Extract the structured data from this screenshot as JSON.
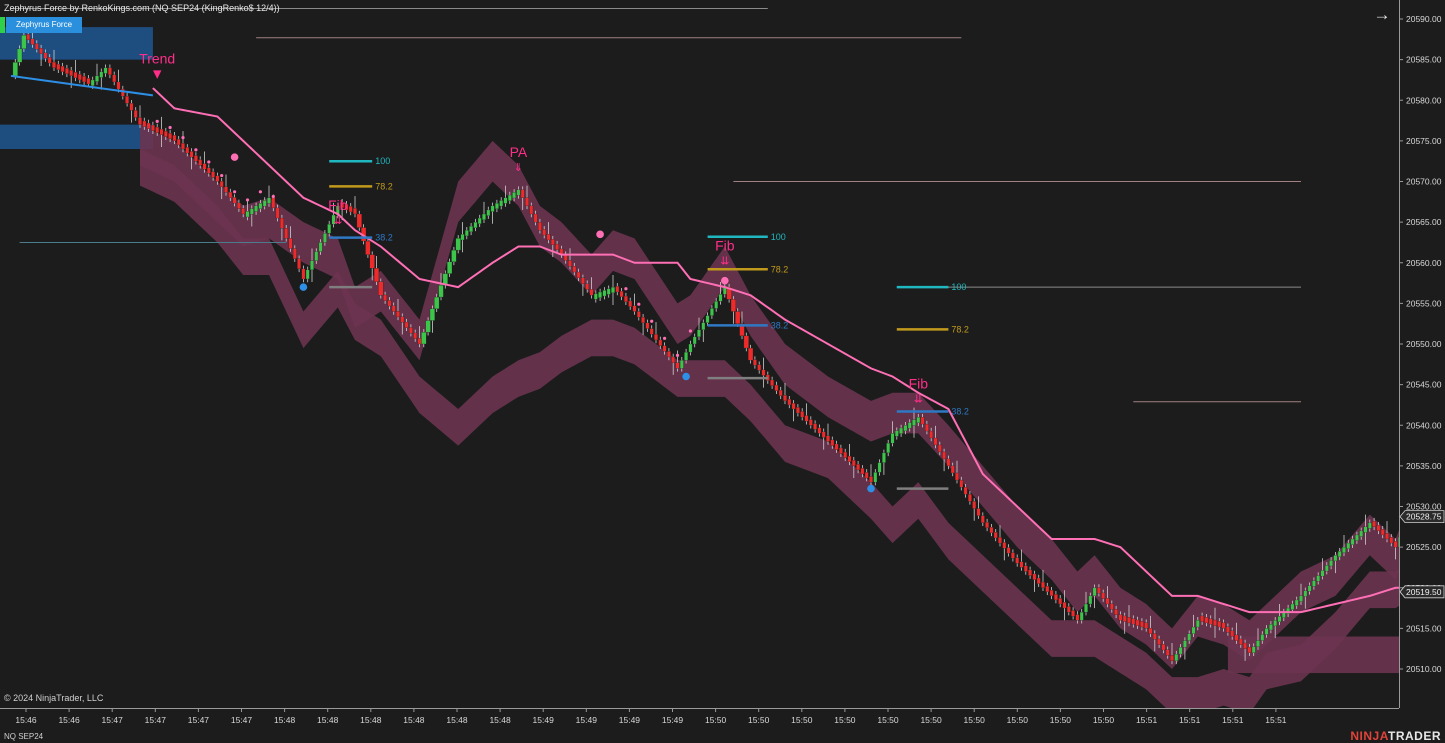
{
  "window": {
    "title": "Zephyrus Force by RenkoKings.com (NQ SEP24 (KingRenko$ 12/4))",
    "indicator_badge": "Zephyrus Force",
    "copyright": "© 2024 NinjaTrader, LLC",
    "instrument_tab": "NQ SEP24",
    "brand_left": "NINJA",
    "brand_right": "TRADER",
    "nav_arrow": "→",
    "nav_icon": "arrow-right-icon"
  },
  "colors": {
    "background": "#1c1c1c",
    "bull_candle": "#3cc54a",
    "bear_candle": "#ee2a2a",
    "mid_line": "#ff6fb5",
    "band_fill": "#6b3450",
    "blue_band": "#1e4d80",
    "blue_line": "#2d8fe6",
    "fib_100": "#1fb8c0",
    "fib_78": "#c29a1b",
    "fib_38": "#2e78c4",
    "signal_text": "#ff2e8a"
  },
  "chart_data": {
    "type": "candlestick",
    "instrument": "NQ SEP24",
    "bar_type": "KingRenko$ 12/4",
    "y_axis": {
      "min": 20507,
      "max": 20592,
      "ticks": [
        20590,
        20585,
        20580,
        20575,
        20570,
        20565,
        20560,
        20555,
        20550,
        20545,
        20540,
        20535,
        20530,
        20525,
        20520,
        20515,
        20510
      ],
      "tick_labels": [
        "20590.00",
        "20585.00",
        "20580.00",
        "20575.00",
        "20570.00",
        "20565.00",
        "20560.00",
        "20555.00",
        "20550.00",
        "20545.00",
        "20540.00",
        "20535.00",
        "20530.00",
        "20525.00",
        "20520.00",
        "20515.00",
        "20510.00"
      ]
    },
    "x_axis": {
      "tick_labels": [
        "15:46",
        "15:46",
        "15:47",
        "15:47",
        "15:47",
        "15:47",
        "15:48",
        "15:48",
        "15:48",
        "15:48",
        "15:48",
        "15:48",
        "15:49",
        "15:49",
        "15:49",
        "15:49",
        "15:50",
        "15:50",
        "15:50",
        "15:50",
        "15:50",
        "15:50",
        "15:50",
        "15:50",
        "15:50",
        "15:50",
        "15:51",
        "15:51",
        "15:51",
        "15:51"
      ]
    },
    "price_labels": [
      {
        "value": 20528.75,
        "label": "20528.75"
      },
      {
        "value": 20519.5,
        "label": "20519.50"
      }
    ],
    "signals": [
      {
        "text": "Trend",
        "bar": 34,
        "price": 20584.5,
        "arrow": "▼"
      },
      {
        "text": "PA",
        "bar": 118,
        "price": 20573,
        "arrow": "⇓"
      },
      {
        "text": "Fib",
        "bar": 76,
        "price": 20566.5,
        "arrow": "⇊"
      },
      {
        "text": "Fib",
        "bar": 166,
        "price": 20561.5,
        "arrow": "⇊"
      },
      {
        "text": "Fib",
        "bar": 211,
        "price": 20544.5,
        "arrow": "⇊"
      }
    ],
    "fib_sets": [
      {
        "bar_start": 74,
        "bar_end": 84,
        "levels": [
          {
            "label": "100",
            "price": 20572.5
          },
          {
            "label": "78.2",
            "price": 20569.4
          },
          {
            "label": "38.2",
            "price": 20563.1
          },
          {
            "label": "",
            "price": 20557.0
          }
        ]
      },
      {
        "bar_start": 162,
        "bar_end": 176,
        "levels": [
          {
            "label": "100",
            "price": 20563.2
          },
          {
            "label": "78.2",
            "price": 20559.2
          },
          {
            "label": "38.2",
            "price": 20552.3
          },
          {
            "label": "",
            "price": 20545.8
          }
        ]
      },
      {
        "bar_start": 206,
        "bar_end": 218,
        "levels": [
          {
            "label": "100",
            "price": 20557.0
          },
          {
            "label": "78.2",
            "price": 20551.8
          },
          {
            "label": "38.2",
            "price": 20541.7
          },
          {
            "label": "",
            "price": 20532.2
          }
        ]
      }
    ],
    "horizontal_lines": [
      {
        "price": 20591.3,
        "bar_start": 0,
        "bar_end": 176,
        "color": "#8a8a8a"
      },
      {
        "price": 20587.7,
        "bar_start": 57,
        "bar_end": 221,
        "color": "#a08080"
      },
      {
        "price": 20570.0,
        "bar_start": 168,
        "bar_end": 300,
        "color": "#a08080"
      },
      {
        "price": 20562.5,
        "bar_start": 2,
        "bar_end": 64,
        "color": "#4a7c8c"
      },
      {
        "price": 20557.0,
        "bar_start": 206,
        "bar_end": 300,
        "color": "#8a8a8a"
      },
      {
        "price": 20542.9,
        "bar_start": 261,
        "bar_end": 300,
        "color": "#a08080"
      }
    ],
    "dots": [
      {
        "bar": 52,
        "price": 20573.0,
        "color": "#ff6fb5"
      },
      {
        "bar": 68,
        "price": 20557.0,
        "color": "#2d8fe6"
      },
      {
        "bar": 137,
        "price": 20563.5,
        "color": "#ff6fb5"
      },
      {
        "bar": 157,
        "price": 20546.0,
        "color": "#2d8fe6"
      },
      {
        "bar": 166,
        "price": 20557.8,
        "color": "#ff6fb5"
      },
      {
        "bar": 200,
        "price": 20532.2,
        "color": "#2d8fe6"
      }
    ],
    "anchors": [
      [
        0,
        20583,
        20591,
        20579,
        20593
      ],
      [
        3,
        20588,
        20590,
        20576,
        20595
      ],
      [
        10,
        20584,
        20586,
        20573,
        20589
      ],
      [
        18,
        20582,
        20582,
        20572,
        20586
      ],
      [
        22,
        20584,
        20584,
        20579,
        20589
      ],
      [
        30,
        20577,
        20577,
        20574,
        20583
      ],
      [
        38,
        20575,
        20575,
        20572,
        20579
      ],
      [
        48,
        20570,
        20570,
        20567,
        20578
      ],
      [
        54,
        20566,
        20567,
        20563,
        20575
      ],
      [
        60,
        20568,
        20568,
        20563,
        20572
      ],
      [
        68,
        20558,
        20565,
        20554,
        20568
      ],
      [
        76,
        20567,
        20563,
        20559,
        20566
      ],
      [
        80,
        20566,
        20557,
        20555,
        20564
      ],
      [
        86,
        20556,
        20559,
        20553,
        20562
      ],
      [
        95,
        20550,
        20553,
        20546,
        20558
      ],
      [
        104,
        20563,
        20570,
        20542,
        20557
      ],
      [
        112,
        20567,
        20575,
        20546,
        20560
      ],
      [
        118,
        20569,
        20572,
        20548,
        20562
      ],
      [
        123,
        20564,
        20567,
        20549,
        20562
      ],
      [
        128,
        20561,
        20565,
        20551,
        20561
      ],
      [
        135,
        20556,
        20561,
        20553,
        20561
      ],
      [
        140,
        20557,
        20564,
        20553,
        20561
      ],
      [
        145,
        20554,
        20563,
        20552,
        20560
      ],
      [
        155,
        20547,
        20555,
        20548,
        20560
      ],
      [
        158,
        20550,
        20556,
        20548,
        20558
      ],
      [
        166,
        20557,
        20562,
        20548,
        20557
      ],
      [
        172,
        20548,
        20556,
        20545,
        20556
      ],
      [
        180,
        20543,
        20550,
        20540,
        20553
      ],
      [
        190,
        20538,
        20546,
        20538,
        20550
      ],
      [
        200,
        20533,
        20543,
        20533,
        20547
      ],
      [
        205,
        20539,
        20544,
        20530,
        20546
      ],
      [
        211,
        20541,
        20544,
        20533,
        20544
      ],
      [
        218,
        20535,
        20540,
        20528,
        20542
      ],
      [
        226,
        20528,
        20535,
        20524,
        20534
      ],
      [
        234,
        20523,
        20530,
        20520,
        20530
      ],
      [
        242,
        20519,
        20526,
        20516,
        20526
      ],
      [
        248,
        20516,
        20522,
        20516,
        20526
      ],
      [
        252,
        20520,
        20524,
        20516,
        20526
      ],
      [
        258,
        20516,
        20520,
        20514,
        20525
      ],
      [
        264,
        20515,
        20518,
        20512,
        20522
      ],
      [
        270,
        20511,
        20515,
        20509,
        20519
      ],
      [
        276,
        20516,
        20519,
        20509,
        20519
      ],
      [
        282,
        20515,
        20518,
        20510,
        20518
      ],
      [
        288,
        20512,
        20516,
        20509,
        20517
      ],
      [
        292,
        20515,
        20518,
        20512,
        20517
      ],
      [
        300,
        20519,
        20522,
        20513,
        20517
      ],
      [
        308,
        20524,
        20524,
        20517,
        20518
      ],
      [
        316,
        20528,
        20529,
        20522,
        20519
      ],
      [
        322,
        20525,
        20526,
        20522,
        20520
      ],
      [
        325,
        20528.75,
        20530,
        20523,
        20520
      ]
    ],
    "anchor_fields": [
      "bar",
      "close",
      "band_upper",
      "band_lower",
      "mid_line"
    ],
    "blue_band": {
      "bar_start": 0,
      "bar_end": 33,
      "upper": 20589,
      "lower": 20574,
      "line": 20583
    },
    "lower_band_tail": {
      "bar_start": 283,
      "bar_end": 325,
      "upper": 20514,
      "lower": 20509.5
    }
  }
}
